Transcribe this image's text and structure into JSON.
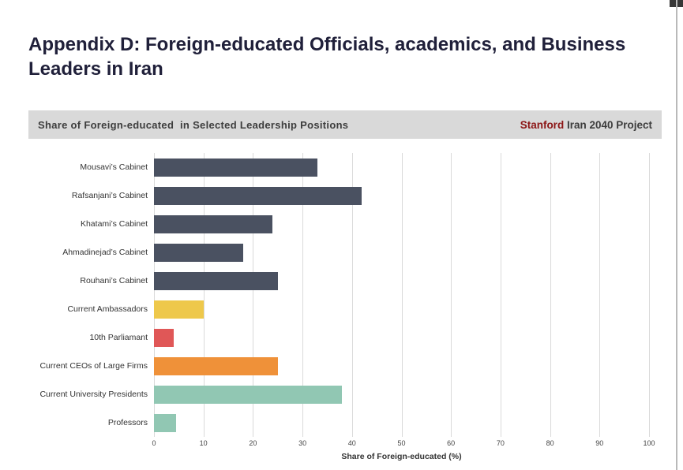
{
  "page": {
    "title": "Appendix D: Foreign-educated Officials, academics, and Business Leaders in Iran"
  },
  "chart_header": {
    "title": "Share of Foreign-educated  in Selected Leadership Positions",
    "brand_primary": "Stanford",
    "brand_secondary": " Iran 2040 Project",
    "brand_color": "#8c1515",
    "background": "#d9d9d9"
  },
  "chart_data": {
    "type": "bar",
    "orientation": "horizontal",
    "title": "Share of Foreign-educated in Selected Leadership Positions",
    "categories": [
      "Mousavi’s Cabinet",
      "Rafsanjani’s Cabinet",
      "Khatami’s Cabinet",
      "Ahmadinejad’s Cabinet",
      "Rouhani’s Cabinet",
      "Current Ambassadors",
      "10th Parliamant",
      "Current CEOs of Large Firms",
      "Current University Presidents",
      "Professors"
    ],
    "values": [
      33,
      42,
      24,
      18,
      25,
      10,
      4,
      25,
      38,
      4.5
    ],
    "colors": [
      "#4a5161",
      "#4a5161",
      "#4a5161",
      "#4a5161",
      "#4a5161",
      "#eec84b",
      "#e05757",
      "#ef9139",
      "#91c7b3",
      "#91c7b3"
    ],
    "xlabel": "Share of Foreign-educated (%)",
    "xlim": [
      0,
      100
    ],
    "xticks": [
      0,
      10,
      20,
      30,
      40,
      50,
      60,
      70,
      80,
      90,
      100
    ],
    "grid": true,
    "legend": false
  }
}
